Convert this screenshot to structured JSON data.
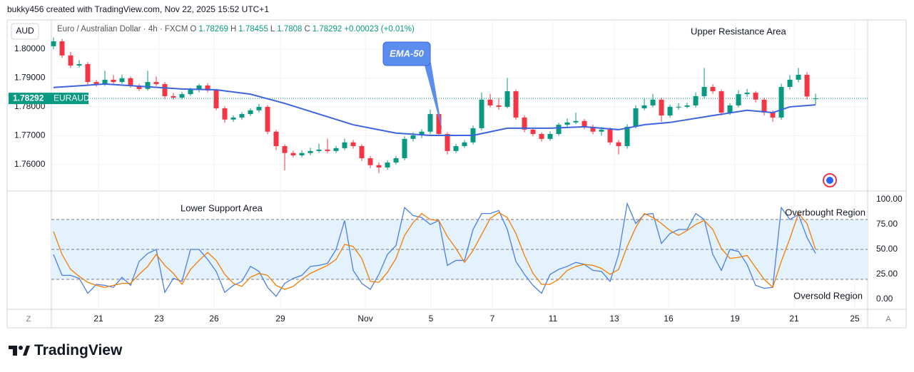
{
  "header": {
    "attribution": "bukky456 created with TradingView.com, Nov 22, 2025 15:52 UTC+1",
    "currency": "AUD",
    "symbol": "Euro / Australian Dollar · 4h · FXCM",
    "o": "O",
    "h": "H",
    "l": "L",
    "c": "C",
    "change": "+0.00023 (+0.01%)"
  },
  "chart_data": [
    {
      "type": "candlestick",
      "up_color": "#089981",
      "down_color": "#f23645",
      "ohlc": [
        [
          1.801,
          1.804,
          1.8,
          1.8027
        ],
        [
          1.8027,
          1.8035,
          1.797,
          1.7978
        ],
        [
          1.7978,
          1.799,
          1.7935,
          1.7943
        ],
        [
          1.7943,
          1.7962,
          1.7936,
          1.7948
        ],
        [
          1.7948,
          1.7955,
          1.7878,
          1.7886
        ],
        [
          1.7886,
          1.7893,
          1.787,
          1.7879
        ],
        [
          1.7879,
          1.7925,
          1.7872,
          1.7894
        ],
        [
          1.7894,
          1.791,
          1.788,
          1.7886
        ],
        [
          1.7886,
          1.7912,
          1.788,
          1.7899
        ],
        [
          1.7899,
          1.7905,
          1.7866,
          1.7874
        ],
        [
          1.7874,
          1.788,
          1.7855,
          1.7862
        ],
        [
          1.7862,
          1.7925,
          1.7856,
          1.7886
        ],
        [
          1.7886,
          1.7905,
          1.7872,
          1.7879
        ],
        [
          1.7879,
          1.7886,
          1.7826,
          1.7837
        ],
        [
          1.7837,
          1.7848,
          1.7825,
          1.7832
        ],
        [
          1.7832,
          1.7852,
          1.7826,
          1.7844
        ],
        [
          1.7844,
          1.7866,
          1.7838,
          1.7859
        ],
        [
          1.7859,
          1.788,
          1.785,
          1.7874
        ],
        [
          1.7874,
          1.7882,
          1.785,
          1.7857
        ],
        [
          1.7857,
          1.7862,
          1.7788,
          1.7795
        ],
        [
          1.7795,
          1.7802,
          1.7745,
          1.7756
        ],
        [
          1.7756,
          1.777,
          1.7748,
          1.7763
        ],
        [
          1.7763,
          1.7782,
          1.7755,
          1.7775
        ],
        [
          1.7775,
          1.7795,
          1.7768,
          1.7788
        ],
        [
          1.7788,
          1.781,
          1.778,
          1.78
        ],
        [
          1.78,
          1.7806,
          1.7705,
          1.7714
        ],
        [
          1.7714,
          1.772,
          1.765,
          1.7664
        ],
        [
          1.7664,
          1.767,
          1.758,
          1.764
        ],
        [
          1.764,
          1.7648,
          1.7625,
          1.7632
        ],
        [
          1.7632,
          1.765,
          1.7625,
          1.764
        ],
        [
          1.764,
          1.7658,
          1.7632,
          1.7647
        ],
        [
          1.7647,
          1.7672,
          1.764,
          1.7652
        ],
        [
          1.7652,
          1.769,
          1.764,
          1.7647
        ],
        [
          1.7647,
          1.7665,
          1.764,
          1.7657
        ],
        [
          1.7657,
          1.769,
          1.765,
          1.7677
        ],
        [
          1.7677,
          1.7685,
          1.7655,
          1.7664
        ],
        [
          1.7664,
          1.767,
          1.7612,
          1.7622
        ],
        [
          1.7622,
          1.763,
          1.7588,
          1.7598
        ],
        [
          1.7598,
          1.7608,
          1.757,
          1.759
        ],
        [
          1.759,
          1.7615,
          1.7582,
          1.7607
        ],
        [
          1.7607,
          1.763,
          1.76,
          1.7622
        ],
        [
          1.7622,
          1.7698,
          1.7615,
          1.7689
        ],
        [
          1.7689,
          1.7712,
          1.768,
          1.7701
        ],
        [
          1.7701,
          1.7722,
          1.7692,
          1.7714
        ],
        [
          1.7714,
          1.779,
          1.7705,
          1.7775
        ],
        [
          1.7775,
          1.7782,
          1.7698,
          1.7706
        ],
        [
          1.7706,
          1.7712,
          1.7635,
          1.7647
        ],
        [
          1.7647,
          1.7672,
          1.764,
          1.7664
        ],
        [
          1.7664,
          1.7685,
          1.7658,
          1.7677
        ],
        [
          1.7677,
          1.7735,
          1.767,
          1.7726
        ],
        [
          1.7726,
          1.785,
          1.7718,
          1.7825
        ],
        [
          1.7825,
          1.7845,
          1.7798,
          1.7805
        ],
        [
          1.7805,
          1.783,
          1.779,
          1.78
        ],
        [
          1.78,
          1.79,
          1.7795,
          1.7854
        ],
        [
          1.7854,
          1.786,
          1.7755,
          1.7763
        ],
        [
          1.7763,
          1.777,
          1.7712,
          1.7721
        ],
        [
          1.7721,
          1.7728,
          1.7698,
          1.7706
        ],
        [
          1.7706,
          1.7712,
          1.768,
          1.7689
        ],
        [
          1.7689,
          1.7715,
          1.7682,
          1.7706
        ],
        [
          1.7706,
          1.7745,
          1.77,
          1.7738
        ],
        [
          1.7738,
          1.776,
          1.773,
          1.7746
        ],
        [
          1.7746,
          1.778,
          1.774,
          1.7751
        ],
        [
          1.7751,
          1.7758,
          1.7722,
          1.7731
        ],
        [
          1.7731,
          1.7738,
          1.7705,
          1.7714
        ],
        [
          1.7714,
          1.773,
          1.77,
          1.7721
        ],
        [
          1.7721,
          1.7728,
          1.7668,
          1.7677
        ],
        [
          1.7677,
          1.7685,
          1.7635,
          1.7664
        ],
        [
          1.7664,
          1.774,
          1.7655,
          1.7731
        ],
        [
          1.7731,
          1.7805,
          1.7725,
          1.7795
        ],
        [
          1.7795,
          1.783,
          1.7788,
          1.7805
        ],
        [
          1.7805,
          1.7845,
          1.7798,
          1.7825
        ],
        [
          1.7825,
          1.7832,
          1.7748,
          1.777
        ],
        [
          1.777,
          1.7808,
          1.7762,
          1.78
        ],
        [
          1.78,
          1.7812,
          1.779,
          1.78
        ],
        [
          1.78,
          1.7815,
          1.7795,
          1.7805
        ],
        [
          1.7805,
          1.785,
          1.7798,
          1.7837
        ],
        [
          1.7837,
          1.7935,
          1.783,
          1.7869
        ],
        [
          1.7869,
          1.7878,
          1.7845,
          1.7854
        ],
        [
          1.7854,
          1.786,
          1.777,
          1.778
        ],
        [
          1.778,
          1.7812,
          1.7772,
          1.7805
        ],
        [
          1.7805,
          1.7858,
          1.7798,
          1.7844
        ],
        [
          1.7844,
          1.7862,
          1.7835,
          1.7849
        ],
        [
          1.7849,
          1.7855,
          1.7815,
          1.7825
        ],
        [
          1.7825,
          1.7832,
          1.777,
          1.778
        ],
        [
          1.778,
          1.7788,
          1.7748,
          1.7763
        ],
        [
          1.7763,
          1.788,
          1.7755,
          1.7869
        ],
        [
          1.7869,
          1.791,
          1.786,
          1.7894
        ],
        [
          1.7894,
          1.7935,
          1.7885,
          1.7911
        ],
        [
          1.7911,
          1.792,
          1.7825,
          1.7836
        ],
        [
          1.78269,
          1.78455,
          1.7808,
          1.78292
        ]
      ],
      "xlim": [
        -0.25,
        95.08
      ],
      "xticks": [
        {
          "value": 5.25,
          "label": "21"
        },
        {
          "value": 12.33,
          "label": "23"
        },
        {
          "value": 18.75,
          "label": "26"
        },
        {
          "value": 26.5,
          "label": "29"
        },
        {
          "value": 36.42,
          "label": "Nov"
        },
        {
          "value": 44.08,
          "label": "5"
        },
        {
          "value": 51.25,
          "label": "7"
        },
        {
          "value": 58.33,
          "label": "11"
        },
        {
          "value": 65.5,
          "label": "13"
        },
        {
          "value": 71.83,
          "label": "16"
        },
        {
          "value": 79.58,
          "label": "19"
        },
        {
          "value": 86.5,
          "label": "21"
        },
        {
          "value": 93.58,
          "label": "25"
        }
      ],
      "ylim": [
        1.7511,
        1.8101
      ],
      "yticks": [
        {
          "value": 1.76,
          "label": "1.76000"
        },
        {
          "value": 1.77,
          "label": "1.77000"
        },
        {
          "value": 1.78,
          "label": "1.78000"
        },
        {
          "value": 1.79,
          "label": "1.79000"
        },
        {
          "value": 1.8,
          "label": "1.80000"
        }
      ],
      "grid": true,
      "ema": {
        "name": "EMA-50",
        "color": "#3d63dd",
        "x": [
          0,
          6,
          15,
          19,
          23,
          27,
          31,
          35,
          40,
          44,
          49,
          53,
          58,
          62,
          66,
          69,
          72,
          77,
          81,
          84,
          86,
          89
        ],
        "values": [
          1.7867,
          1.7879,
          1.7862,
          1.7859,
          1.7844,
          1.7812,
          1.7775,
          1.7738,
          1.7709,
          1.7701,
          1.7701,
          1.7726,
          1.7726,
          1.7731,
          1.7721,
          1.7738,
          1.7746,
          1.777,
          1.7788,
          1.778,
          1.78,
          1.7807
        ]
      },
      "price_line": {
        "symbol": "EURAUD",
        "color": "#089981"
      },
      "annotations": [
        "Upper Resistance Area"
      ]
    },
    {
      "type": "line",
      "xlim": [
        -0.25,
        95.08
      ],
      "ylim": [
        -10,
        108.6
      ],
      "yticks": [
        {
          "value": 0,
          "label": "0.00"
        },
        {
          "value": 25,
          "label": "25.00"
        },
        {
          "value": 50,
          "label": "50.00"
        },
        {
          "value": 75,
          "label": "75.00"
        },
        {
          "value": 100,
          "label": "100.00"
        }
      ],
      "band": [
        20,
        80
      ],
      "midline": 50,
      "band_color": "#e3f2fd",
      "series": [
        {
          "color": "#4a7ee8",
          "values": [
            45,
            24,
            24,
            21,
            6,
            15,
            14,
            12,
            22,
            14,
            38,
            46,
            50,
            7,
            21,
            18,
            50,
            50,
            40,
            28,
            7,
            14,
            18,
            33,
            28,
            12,
            3,
            16,
            21,
            24,
            33,
            34,
            36,
            50,
            79,
            29,
            16,
            10,
            25,
            45,
            54,
            92,
            84,
            82,
            75,
            79,
            34,
            39,
            39,
            70,
            86,
            86,
            89,
            70,
            38,
            25,
            14,
            6,
            25,
            30,
            33,
            37,
            35,
            29,
            28,
            18,
            45,
            96,
            76,
            85,
            86,
            56,
            66,
            70,
            70,
            86,
            80,
            45,
            29,
            50,
            48,
            35,
            14,
            11,
            12,
            92,
            80,
            85,
            62,
            46
          ]
        },
        {
          "color": "#f57c00",
          "values": [
            68,
            45,
            30,
            23,
            17,
            14,
            12,
            14,
            16,
            16,
            25,
            33,
            45,
            34,
            26,
            15,
            30,
            39,
            47,
            39,
            25,
            16,
            13,
            22,
            26,
            24,
            14,
            10,
            13,
            20,
            26,
            30,
            34,
            40,
            55,
            53,
            41,
            18,
            17,
            27,
            41,
            64,
            77,
            86,
            80,
            79,
            63,
            51,
            37,
            49,
            65,
            81,
            87,
            82,
            66,
            44,
            26,
            15,
            15,
            20,
            29,
            33,
            35,
            34,
            31,
            25,
            30,
            53,
            72,
            86,
            82,
            76,
            69,
            64,
            69,
            75,
            79,
            70,
            51,
            41,
            42,
            44,
            32,
            20,
            12,
            38,
            61,
            86,
            76,
            50
          ]
        }
      ],
      "annotations": [
        "Lower Support Area",
        "Overbought Region",
        "Oversold Region"
      ]
    }
  ],
  "footer": {
    "brand": "TradingView",
    "left_button": "Z",
    "right_button": "A"
  }
}
